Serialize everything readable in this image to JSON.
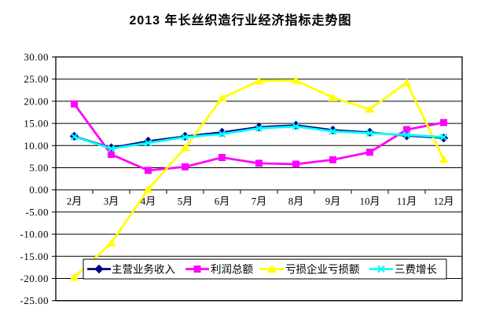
{
  "title": "2013 年长丝织造行业经济指标走势图",
  "chart_data": {
    "type": "line",
    "title": "2013 年长丝织造行业经济指标走势图",
    "categories": [
      "2月",
      "3月",
      "4月",
      "5月",
      "6月",
      "7月",
      "8月",
      "9月",
      "10月",
      "11月",
      "12月"
    ],
    "series": [
      {
        "name": "主营业务收入",
        "color": "#000080",
        "marker": "diamond",
        "values": [
          12.1,
          9.5,
          11.0,
          12.1,
          13.0,
          14.2,
          14.6,
          13.5,
          13.0,
          12.2,
          11.7
        ]
      },
      {
        "name": "利润总额",
        "color": "#FF00FF",
        "marker": "square",
        "values": [
          19.4,
          8.0,
          4.4,
          5.2,
          7.3,
          6.0,
          5.8,
          6.8,
          8.5,
          13.6,
          15.2
        ]
      },
      {
        "name": "亏损企业亏损额",
        "color": "#FFFF00",
        "marker": "triangle",
        "values": [
          -19.7,
          -12.0,
          0.1,
          9.5,
          20.7,
          24.6,
          24.7,
          20.8,
          18.2,
          24.2,
          6.9
        ]
      },
      {
        "name": "三费增长",
        "color": "#00FFFF",
        "marker": "x",
        "values": [
          12.0,
          9.3,
          10.6,
          11.9,
          12.6,
          13.9,
          14.3,
          13.2,
          12.8,
          12.4,
          11.9
        ]
      }
    ],
    "ylim": [
      -25,
      30
    ],
    "ytick_step": 5,
    "ytick_labels": [
      "30.00",
      "25.00",
      "20.00",
      "15.00",
      "10.00",
      "5.00",
      "0.00",
      "-5.00",
      "-10.00",
      "-15.00",
      "-20.00",
      "-25.00"
    ],
    "xlabel": "",
    "ylabel": "",
    "grid": true,
    "legend_position": "bottom-inside",
    "axis_color": "#000000",
    "plot_background": "#ffffff"
  }
}
